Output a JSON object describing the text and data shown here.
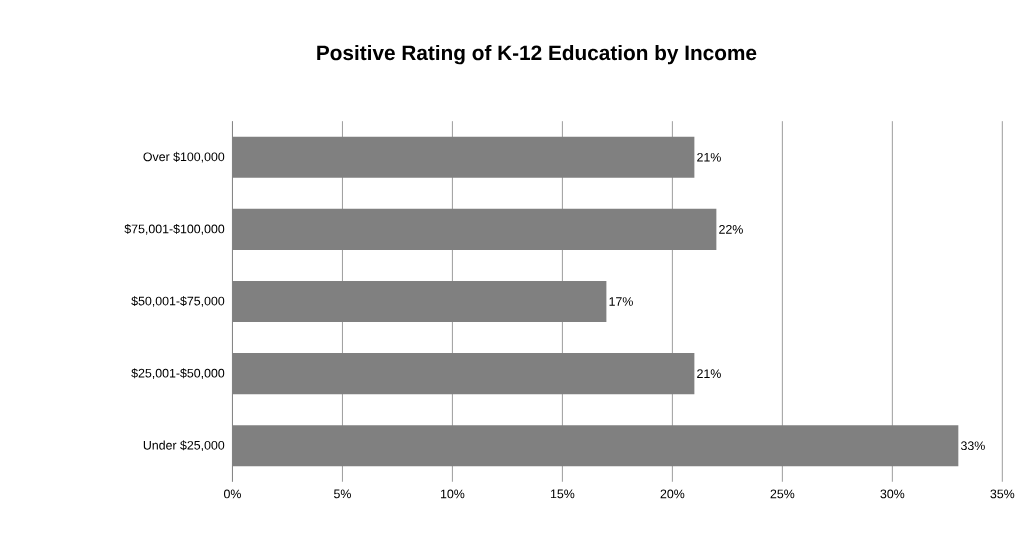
{
  "chart_data": {
    "type": "bar",
    "orientation": "horizontal",
    "title": "Positive Rating of K-12 Education  by Income",
    "categories": [
      "Over $100,000",
      "$75,001-$100,000",
      "$50,001-$75,000",
      "$25,001-$50,000",
      "Under $25,000"
    ],
    "values": [
      21,
      22,
      17,
      21,
      33
    ],
    "value_labels": [
      "21%",
      "22%",
      "17%",
      "21%",
      "33%"
    ],
    "color": "#808080",
    "xlim": [
      0,
      35
    ],
    "xticks": [
      {
        "value": 0,
        "label": "0%"
      },
      {
        "value": 5,
        "label": "5%"
      },
      {
        "value": 10,
        "label": "10%"
      },
      {
        "value": 15,
        "label": "15%"
      },
      {
        "value": 20,
        "label": "20%"
      },
      {
        "value": 25,
        "label": "25%"
      },
      {
        "value": 30,
        "label": "30%"
      },
      {
        "value": 35,
        "label": "35%"
      }
    ],
    "grid": "x"
  }
}
